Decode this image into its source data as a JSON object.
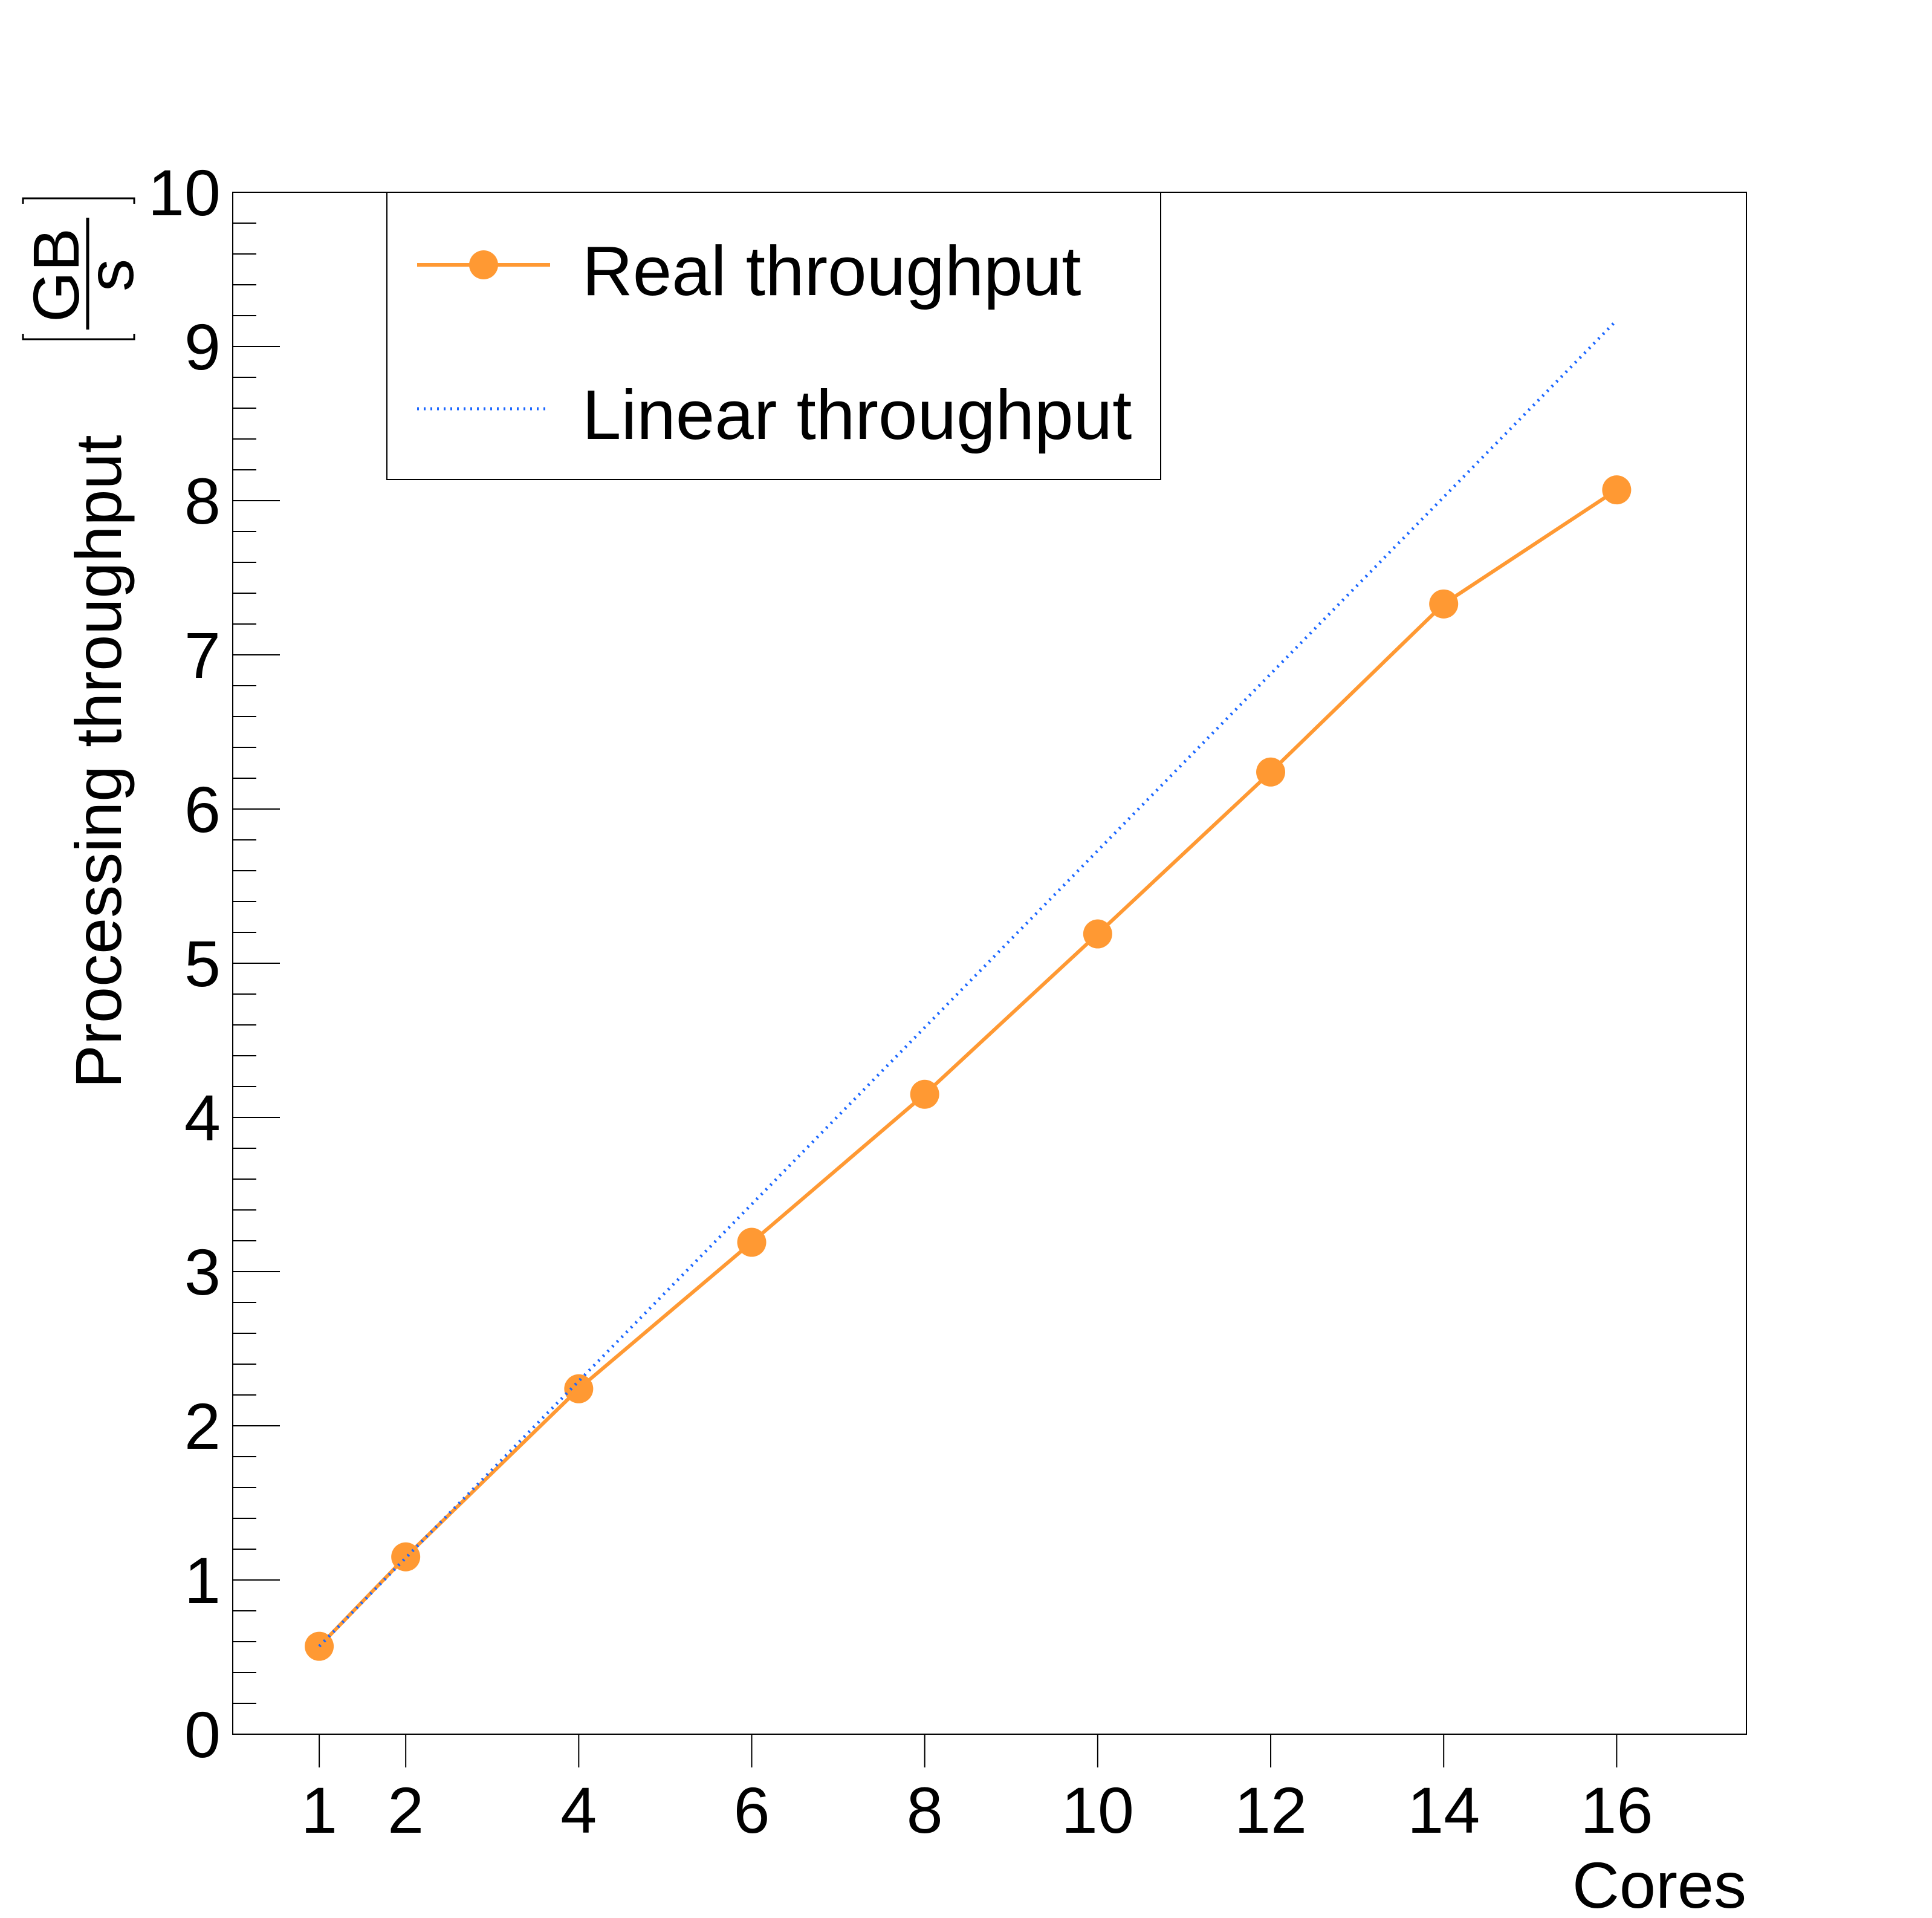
{
  "chart_data": {
    "type": "line",
    "title": "",
    "xlabel": "Cores",
    "ylabel": "Processing throughput",
    "ylabel_unit_numerator": "GB",
    "ylabel_unit_denominator": "s",
    "xlim": [
      0,
      17.5
    ],
    "ylim": [
      0,
      10
    ],
    "x_ticks": [
      1,
      2,
      4,
      6,
      8,
      10,
      12,
      14,
      16
    ],
    "y_ticks": [
      0,
      1,
      2,
      3,
      4,
      5,
      6,
      7,
      8,
      9,
      10
    ],
    "grid": false,
    "legend_position": "top-left",
    "series": [
      {
        "name": "Real throughput",
        "color": "#ff9933",
        "style": "solid-markers",
        "points": [
          {
            "x": 1,
            "y": 0.57
          },
          {
            "x": 2,
            "y": 1.15
          },
          {
            "x": 4,
            "y": 2.24
          },
          {
            "x": 6,
            "y": 3.19
          },
          {
            "x": 8,
            "y": 4.15
          },
          {
            "x": 10,
            "y": 5.19
          },
          {
            "x": 12,
            "y": 6.24
          },
          {
            "x": 14,
            "y": 7.33
          },
          {
            "x": 16,
            "y": 8.07
          }
        ]
      },
      {
        "name": "Linear throughput",
        "color": "#1a66ff",
        "style": "dotted",
        "points": [
          {
            "x": 1,
            "y": 0.57
          },
          {
            "x": 16,
            "y": 9.17
          }
        ]
      }
    ]
  }
}
